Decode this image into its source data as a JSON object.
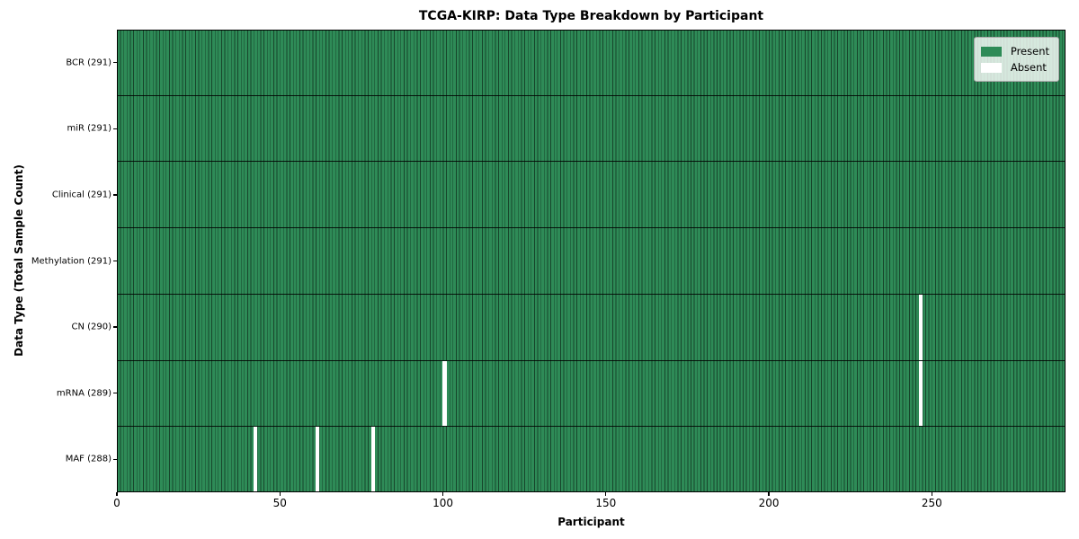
{
  "chart_data": {
    "type": "heatmap",
    "title": "TCGA-KIRP: Data Type Breakdown by Participant",
    "xlabel": "Participant",
    "ylabel": "Data Type (Total Sample Count)",
    "n_participants": 291,
    "xlim": [
      0,
      291
    ],
    "x_ticks": [
      0,
      50,
      100,
      150,
      200,
      250
    ],
    "grid": "cell-edges",
    "rows": [
      {
        "data_type": "BCR",
        "label": "BCR (291)",
        "present_count": 291,
        "absent_participants": []
      },
      {
        "data_type": "miR",
        "label": "miR (291)",
        "present_count": 291,
        "absent_participants": []
      },
      {
        "data_type": "Clinical",
        "label": "Clinical (291)",
        "present_count": 291,
        "absent_participants": []
      },
      {
        "data_type": "Methylation",
        "label": "Methylation (291)",
        "present_count": 291,
        "absent_participants": []
      },
      {
        "data_type": "CN",
        "label": "CN (290)",
        "present_count": 290,
        "absent_participants": [
          246
        ]
      },
      {
        "data_type": "mRNA",
        "label": "mRNA (289)",
        "present_count": 289,
        "absent_participants": [
          100,
          246
        ]
      },
      {
        "data_type": "MAF",
        "label": "MAF (288)",
        "present_count": 288,
        "absent_participants": [
          42,
          61,
          78
        ]
      }
    ],
    "colors": {
      "present": "#2e8b57",
      "absent": "#ffffff",
      "cell_edge": "rgba(0,0,0,0.5)",
      "row_divider": "rgba(0,0,0,0.85)",
      "axis": "#000000"
    },
    "legend_position": "upper right",
    "legend_items": [
      {
        "label": "Present",
        "color": "#2e8b57"
      },
      {
        "label": "Absent",
        "color": "#ffffff"
      }
    ]
  }
}
